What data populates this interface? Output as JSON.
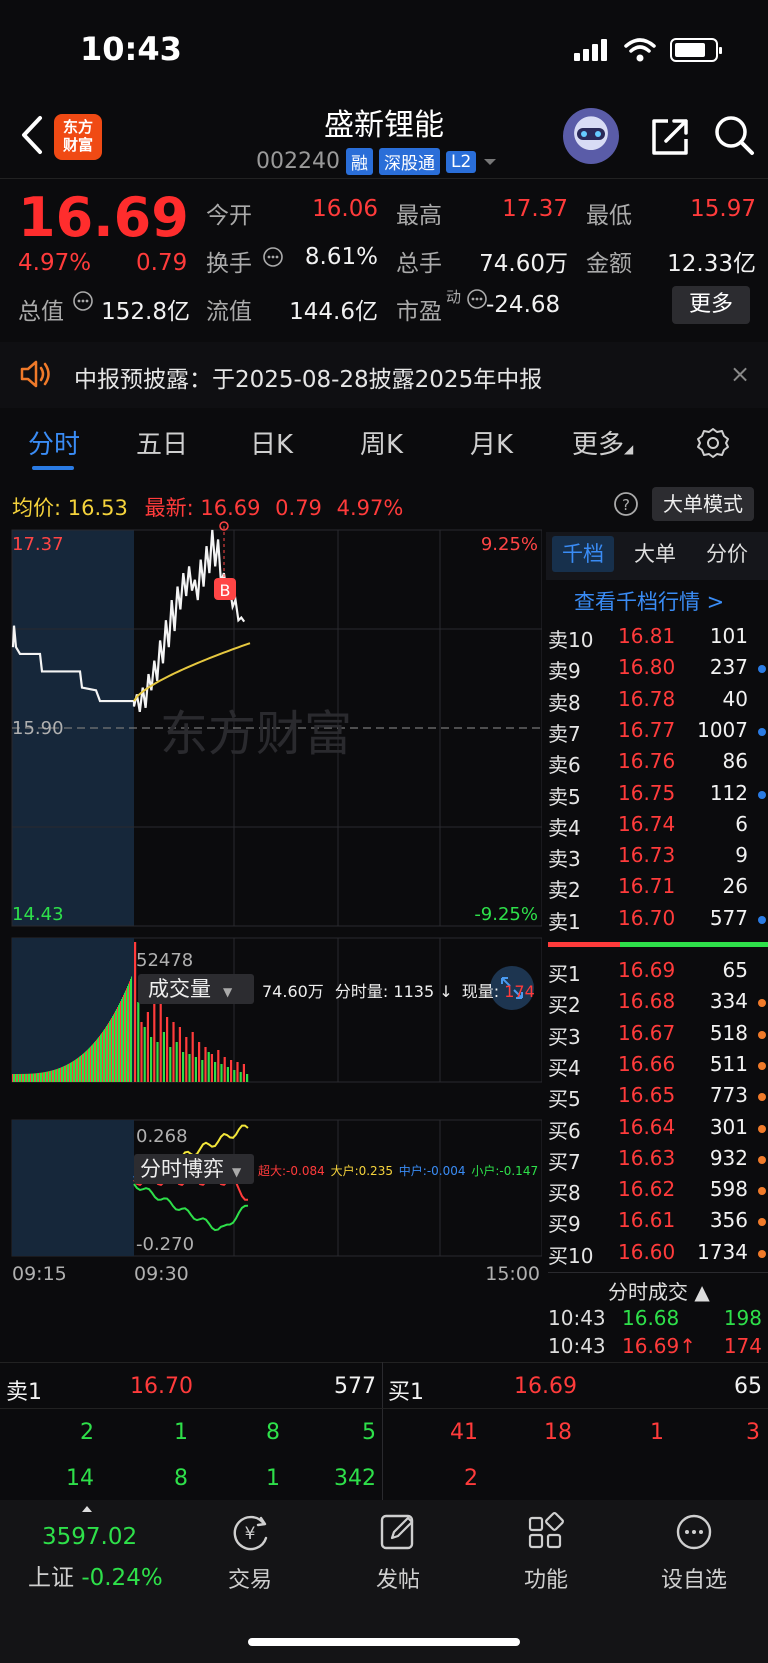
{
  "status_bar": {
    "time": "10:43"
  },
  "header": {
    "logo_line1": "东方",
    "logo_line2": "财富",
    "stock_name": "盛新锂能",
    "stock_code": "002240",
    "tags": [
      "融",
      "深股通",
      "L2"
    ]
  },
  "quote": {
    "price": "16.69",
    "change_pct": "4.97%",
    "change": "0.79",
    "open_label": "今开",
    "open": "16.06",
    "high_label": "最高",
    "high": "17.37",
    "low_label": "最低",
    "low": "15.97",
    "turnover_label": "换手",
    "turnover": "8.61%",
    "volume_label": "总手",
    "volume": "74.60万",
    "amount_label": "金额",
    "amount": "12.33亿",
    "mktcap_label": "总值",
    "mktcap": "152.8亿",
    "float_label": "流值",
    "float": "144.6亿",
    "pe_label": "市盈",
    "pe_sup": "动",
    "pe": "-24.68",
    "more_label": "更多"
  },
  "notice": {
    "text": "中报预披露：于2025-08-28披露2025年中报",
    "close": "×"
  },
  "tabs": [
    "分时",
    "五日",
    "日K",
    "周K",
    "月K",
    "更多"
  ],
  "chart_header": {
    "avg_label": "均价:",
    "avg": "16.53",
    "latest_label": "最新:",
    "latest": "16.69",
    "latest_chg": "0.79",
    "latest_pct": "4.97%",
    "mode_button": "大单模式"
  },
  "price_chart": {
    "top_price": "17.37",
    "top_pct": "9.25%",
    "mid_price": "15.90",
    "bottom_price": "14.43",
    "bottom_pct": "-9.25%",
    "watermark": "东方财富",
    "marker": "B"
  },
  "volume_panel": {
    "selector": "成交量",
    "summary_total": "74.60万",
    "summary_period_label": "分时量:",
    "summary_period": "1135",
    "summary_arrow": "↓",
    "summary_now_label": "现量:",
    "summary_now": "174",
    "max_label": "52478"
  },
  "game_panel": {
    "selector": "分时博弈",
    "super_label": "超大:",
    "super": "-0.084",
    "large_label": "大户:",
    "large": "0.235",
    "mid_label": "中户:",
    "mid": "-0.004",
    "small_label": "小户:",
    "small": "-0.147",
    "top_label": "0.268",
    "bottom_label": "-0.270"
  },
  "time_axis": [
    "09:15",
    "09:30",
    "15:00"
  ],
  "orderbook": {
    "tabs": [
      "千档",
      "大单",
      "分价"
    ],
    "link": "查看千档行情 >",
    "asks": [
      {
        "side": "卖10",
        "price": "16.81",
        "vol": "101",
        "dot": ""
      },
      {
        "side": "卖9",
        "price": "16.80",
        "vol": "237",
        "dot": "#2a7be4"
      },
      {
        "side": "卖8",
        "price": "16.78",
        "vol": "40",
        "dot": ""
      },
      {
        "side": "卖7",
        "price": "16.77",
        "vol": "1007",
        "dot": "#2a7be4"
      },
      {
        "side": "卖6",
        "price": "16.76",
        "vol": "86",
        "dot": ""
      },
      {
        "side": "卖5",
        "price": "16.75",
        "vol": "112",
        "dot": "#2a7be4"
      },
      {
        "side": "卖4",
        "price": "16.74",
        "vol": "6",
        "dot": ""
      },
      {
        "side": "卖3",
        "price": "16.73",
        "vol": "9",
        "dot": ""
      },
      {
        "side": "卖2",
        "price": "16.71",
        "vol": "26",
        "dot": ""
      },
      {
        "side": "卖1",
        "price": "16.70",
        "vol": "577",
        "dot": "#2a7be4"
      }
    ],
    "bids": [
      {
        "side": "买1",
        "price": "16.69",
        "vol": "65",
        "dot": ""
      },
      {
        "side": "买2",
        "price": "16.68",
        "vol": "334",
        "dot": "#f07a2a"
      },
      {
        "side": "买3",
        "price": "16.67",
        "vol": "518",
        "dot": "#f07a2a"
      },
      {
        "side": "买4",
        "price": "16.66",
        "vol": "511",
        "dot": "#f07a2a"
      },
      {
        "side": "买5",
        "price": "16.65",
        "vol": "773",
        "dot": "#f07a2a"
      },
      {
        "side": "买6",
        "price": "16.64",
        "vol": "301",
        "dot": "#f07a2a"
      },
      {
        "side": "买7",
        "price": "16.63",
        "vol": "932",
        "dot": "#f07a2a"
      },
      {
        "side": "买8",
        "price": "16.62",
        "vol": "598",
        "dot": "#f07a2a"
      },
      {
        "side": "买9",
        "price": "16.61",
        "vol": "356",
        "dot": "#f07a2a"
      },
      {
        "side": "买10",
        "price": "16.60",
        "vol": "1734",
        "dot": "#f07a2a"
      }
    ],
    "trades_label": "分时成交 ▲",
    "trades": [
      {
        "time": "10:43",
        "price": "16.68",
        "vol": "198",
        "color": "green"
      },
      {
        "time": "10:43",
        "price": "16.69↑",
        "vol": "174",
        "color": "red"
      }
    ]
  },
  "bottom": {
    "sell_label": "卖1",
    "sell_price": "16.70",
    "sell_vol": "577",
    "buy_label": "买1",
    "buy_price": "16.69",
    "buy_vol": "65",
    "sell_queue_row1": [
      "2",
      "1",
      "8",
      "5"
    ],
    "sell_queue_row2": [
      "14",
      "8",
      "1",
      "342"
    ],
    "buy_queue_row1": [
      "41",
      "18",
      "1",
      "3"
    ],
    "buy_queue_row2": [
      "2"
    ]
  },
  "footer": {
    "index_value": "3597.02",
    "index_name": "上证",
    "index_pct": "-0.24%",
    "nav": [
      "交易",
      "发帖",
      "功能",
      "设自选"
    ]
  }
}
